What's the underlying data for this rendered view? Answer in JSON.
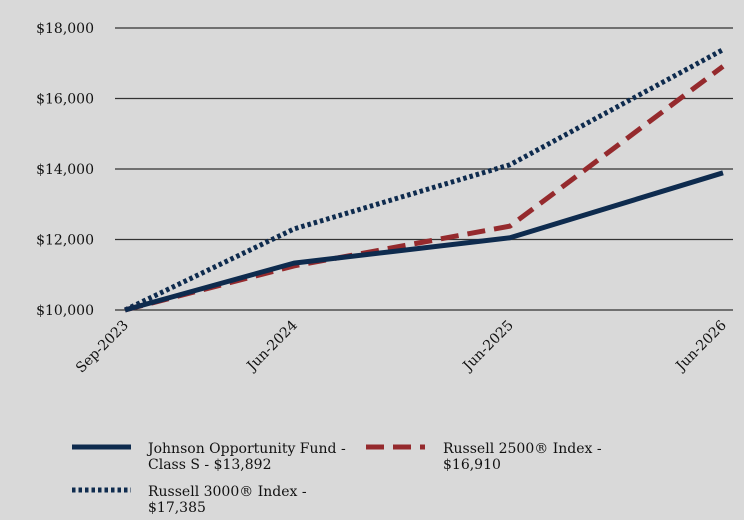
{
  "chart_data": {
    "type": "line",
    "categories": [
      "Sep-2023",
      "Jun-2024",
      "Jun-2025",
      "Jun-2026"
    ],
    "y_tick_labels": [
      "$10,000",
      "$12,000",
      "$14,000",
      "$16,000",
      "$18,000"
    ],
    "y_tick_values": [
      10000,
      12000,
      14000,
      16000,
      18000
    ],
    "ylim": [
      10000,
      18000
    ],
    "grid": "horizontal",
    "legend_position": "bottom",
    "series": [
      {
        "name_lines": [
          "Johnson Opportunity Fund -",
          "Class S - $13,892"
        ],
        "values": [
          10000,
          11330,
          12050,
          13892
        ],
        "color": "#0e2b4e",
        "style": "solid"
      },
      {
        "name_lines": [
          "Russell 2500® Index -",
          "$16,910"
        ],
        "values": [
          10000,
          11250,
          12380,
          16910
        ],
        "color": "#952a2d",
        "style": "dashed"
      },
      {
        "name_lines": [
          "Russell 3000® Index -",
          "$17,385"
        ],
        "values": [
          10000,
          12300,
          14120,
          17385
        ],
        "color": "#0e2b4e",
        "style": "dotted"
      }
    ]
  }
}
